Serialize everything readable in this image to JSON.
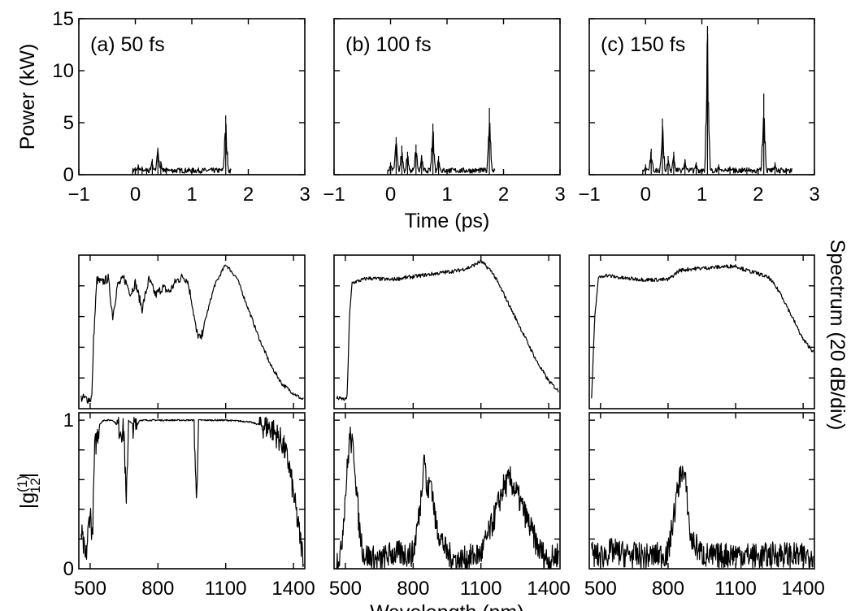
{
  "chart_data": {
    "type": "line",
    "figure": {
      "time_axis_label": "Time (ps)",
      "wavelength_axis_label": "Wavelength (nm)",
      "power_axis_label": "Power (kW)",
      "spectrum_axis_label": "Spectrum (20 dB/div)",
      "coherence_axis_label": "|g",
      "coherence_axis_sup": "(1)",
      "coherence_axis_sub": "12",
      "coherence_axis_end": "|"
    },
    "columns": [
      {
        "label": "(a) 50 fs",
        "time": {
          "xlim": [
            -1,
            3
          ],
          "ylim": [
            0,
            15
          ],
          "xticks": [
            -1,
            0,
            1,
            2,
            3
          ],
          "yticks": [
            0,
            5,
            10,
            15
          ],
          "peaks": [
            [
              0.0,
              0.7
            ],
            [
              0.05,
              1.0
            ],
            [
              0.12,
              0.8
            ],
            [
              0.2,
              0.6
            ],
            [
              0.3,
              1.5
            ],
            [
              0.4,
              2.6
            ],
            [
              0.45,
              1.3
            ],
            [
              0.55,
              0.5
            ],
            [
              1.6,
              5.7
            ]
          ]
        },
        "spectrum": {
          "xlim": [
            450,
            1450
          ],
          "ylim": [
            0,
            100
          ],
          "grid": false,
          "points": [
            [
              460,
              7
            ],
            [
              500,
              6
            ],
            [
              508,
              8
            ],
            [
              515,
              45
            ],
            [
              530,
              84
            ],
            [
              550,
              82
            ],
            [
              580,
              85
            ],
            [
              600,
              60
            ],
            [
              620,
              80
            ],
            [
              650,
              85
            ],
            [
              680,
              75
            ],
            [
              700,
              82
            ],
            [
              730,
              65
            ],
            [
              760,
              84
            ],
            [
              790,
              74
            ],
            [
              820,
              79
            ],
            [
              850,
              76
            ],
            [
              880,
              83
            ],
            [
              910,
              86
            ],
            [
              930,
              84
            ],
            [
              950,
              70
            ],
            [
              970,
              50
            ],
            [
              990,
              45
            ],
            [
              1010,
              58
            ],
            [
              1050,
              80
            ],
            [
              1100,
              94
            ],
            [
              1150,
              85
            ],
            [
              1200,
              65
            ],
            [
              1250,
              45
            ],
            [
              1300,
              28
            ],
            [
              1350,
              16
            ],
            [
              1400,
              10
            ],
            [
              1440,
              6
            ]
          ]
        },
        "coherence": {
          "xlim": [
            450,
            1450
          ],
          "ylim": [
            0,
            1.05
          ],
          "yticks": [
            0,
            1
          ],
          "xticks": [
            500,
            800,
            1100,
            1400
          ],
          "points": [
            [
              460,
              0.25
            ],
            [
              480,
              0.05
            ],
            [
              500,
              0.4
            ],
            [
              510,
              0.2
            ],
            [
              520,
              0.8
            ],
            [
              540,
              0.97
            ],
            [
              560,
              1.0
            ],
            [
              600,
              1.0
            ],
            [
              650,
              0.92
            ],
            [
              660,
              0.4
            ],
            [
              670,
              1.0
            ],
            [
              700,
              0.95
            ],
            [
              720,
              1.0
            ],
            [
              800,
              1.0
            ],
            [
              960,
              1.0
            ],
            [
              970,
              0.45
            ],
            [
              980,
              1.0
            ],
            [
              1100,
              1.0
            ],
            [
              1200,
              0.99
            ],
            [
              1300,
              0.95
            ],
            [
              1350,
              0.85
            ],
            [
              1380,
              0.7
            ],
            [
              1400,
              0.5
            ],
            [
              1420,
              0.3
            ],
            [
              1440,
              0.1
            ]
          ]
        }
      },
      {
        "label": "(b) 100 fs",
        "time": {
          "xlim": [
            -1,
            3
          ],
          "ylim": [
            0,
            15
          ],
          "xticks": [
            -1,
            0,
            1,
            2,
            3
          ],
          "yticks": [
            0,
            5,
            10,
            15
          ],
          "peaks": [
            [
              0.0,
              1.2
            ],
            [
              0.1,
              3.6
            ],
            [
              0.2,
              2.8
            ],
            [
              0.3,
              2.2
            ],
            [
              0.45,
              2.9
            ],
            [
              0.55,
              1.9
            ],
            [
              0.75,
              4.9
            ],
            [
              0.85,
              1.8
            ],
            [
              1.0,
              0.4
            ],
            [
              1.75,
              6.4
            ]
          ]
        },
        "spectrum": {
          "xlim": [
            450,
            1450
          ],
          "ylim": [
            0,
            100
          ],
          "grid": false,
          "points": [
            [
              460,
              7
            ],
            [
              500,
              6
            ],
            [
              508,
              8
            ],
            [
              518,
              60
            ],
            [
              530,
              82
            ],
            [
              600,
              85
            ],
            [
              700,
              84
            ],
            [
              800,
              86
            ],
            [
              900,
              88
            ],
            [
              1000,
              90
            ],
            [
              1050,
              92
            ],
            [
              1100,
              96
            ],
            [
              1150,
              89
            ],
            [
              1200,
              75
            ],
            [
              1250,
              60
            ],
            [
              1300,
              45
            ],
            [
              1350,
              30
            ],
            [
              1400,
              18
            ],
            [
              1440,
              12
            ]
          ]
        },
        "coherence": {
          "xlim": [
            450,
            1450
          ],
          "ylim": [
            0,
            1.05
          ],
          "yticks": [
            0,
            1
          ],
          "xticks": [
            500,
            800,
            1100,
            1400
          ],
          "points": [
            [
              460,
              0.05
            ],
            [
              480,
              0.1
            ],
            [
              500,
              0.5
            ],
            [
              520,
              0.9
            ],
            [
              540,
              0.75
            ],
            [
              560,
              0.3
            ],
            [
              580,
              0.1
            ],
            [
              650,
              0.05
            ],
            [
              700,
              0.1
            ],
            [
              800,
              0.1
            ],
            [
              830,
              0.4
            ],
            [
              850,
              0.8
            ],
            [
              860,
              0.5
            ],
            [
              880,
              0.6
            ],
            [
              900,
              0.3
            ],
            [
              950,
              0.1
            ],
            [
              1000,
              0.05
            ],
            [
              1100,
              0.1
            ],
            [
              1150,
              0.3
            ],
            [
              1200,
              0.55
            ],
            [
              1230,
              0.6
            ],
            [
              1260,
              0.5
            ],
            [
              1300,
              0.35
            ],
            [
              1350,
              0.15
            ],
            [
              1400,
              0.05
            ],
            [
              1440,
              0.1
            ]
          ]
        }
      },
      {
        "label": "(c) 150 fs",
        "time": {
          "xlim": [
            -1,
            3
          ],
          "ylim": [
            0,
            15
          ],
          "xticks": [
            -1,
            0,
            1,
            2,
            3
          ],
          "yticks": [
            0,
            5,
            10,
            15
          ],
          "peaks": [
            [
              0.0,
              1.0
            ],
            [
              0.1,
              2.5
            ],
            [
              0.3,
              5.4
            ],
            [
              0.4,
              1.8
            ],
            [
              0.5,
              2.2
            ],
            [
              0.7,
              1.5
            ],
            [
              0.9,
              1.2
            ],
            [
              1.1,
              14.3
            ],
            [
              1.3,
              1.0
            ],
            [
              1.5,
              0.8
            ],
            [
              1.8,
              0.7
            ],
            [
              2.1,
              7.8
            ],
            [
              2.3,
              1.2
            ],
            [
              2.5,
              0.6
            ]
          ]
        },
        "spectrum": {
          "xlim": [
            450,
            1450
          ],
          "ylim": [
            0,
            100
          ],
          "grid": false,
          "points": [
            [
              460,
              7
            ],
            [
              475,
              60
            ],
            [
              490,
              85
            ],
            [
              520,
              87
            ],
            [
              600,
              85
            ],
            [
              700,
              84
            ],
            [
              800,
              84
            ],
            [
              850,
              90
            ],
            [
              900,
              91
            ],
            [
              1000,
              92
            ],
            [
              1100,
              93
            ],
            [
              1150,
              90
            ],
            [
              1200,
              88
            ],
            [
              1250,
              85
            ],
            [
              1300,
              75
            ],
            [
              1350,
              60
            ],
            [
              1400,
              45
            ],
            [
              1440,
              38
            ]
          ]
        },
        "coherence": {
          "xlim": [
            450,
            1450
          ],
          "ylim": [
            0,
            1.05
          ],
          "yticks": [
            0,
            1
          ],
          "xticks": [
            500,
            800,
            1100,
            1400
          ],
          "points": [
            [
              460,
              0.1
            ],
            [
              500,
              0.08
            ],
            [
              550,
              0.12
            ],
            [
              600,
              0.1
            ],
            [
              700,
              0.08
            ],
            [
              800,
              0.1
            ],
            [
              840,
              0.5
            ],
            [
              860,
              0.68
            ],
            [
              880,
              0.55
            ],
            [
              900,
              0.2
            ],
            [
              950,
              0.1
            ],
            [
              1000,
              0.08
            ],
            [
              1100,
              0.1
            ],
            [
              1200,
              0.08
            ],
            [
              1300,
              0.1
            ],
            [
              1400,
              0.08
            ],
            [
              1440,
              0.1
            ]
          ]
        }
      }
    ]
  }
}
